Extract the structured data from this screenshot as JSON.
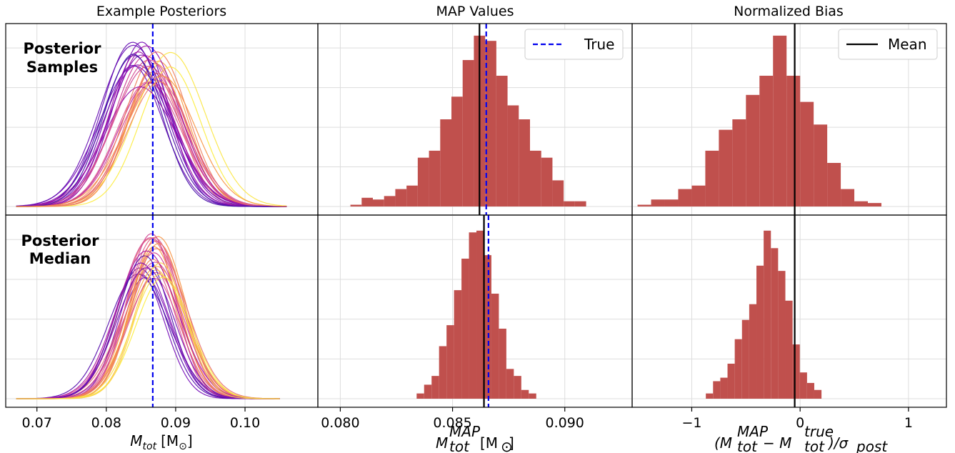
{
  "colors": {
    "bar": "#c0504d",
    "true_line": "#0000ee",
    "mean_line": "#000000",
    "posterior_cmap": [
      "#3a0ca3",
      "#7209b7",
      "#b5179e",
      "#e05d8a",
      "#f89540",
      "#f9d34a",
      "#fdf53a"
    ]
  },
  "chart_data": [
    {
      "id": "posteriors-samples",
      "type": "line",
      "title": "Example Posteriors",
      "row_label": [
        "Posterior",
        "Samples"
      ],
      "xlim": [
        0.0655,
        0.1105
      ],
      "xticks": [
        0.07,
        0.08,
        0.09,
        0.1
      ],
      "xtick_labels": [
        "0.07",
        "0.08",
        "0.09",
        "0.10"
      ],
      "true_value": 0.0867,
      "curves": {
        "count": 28,
        "mu_range": [
          0.0835,
          0.0895
        ],
        "sigma_range": [
          0.004,
          0.0052
        ],
        "x_range": [
          0.067,
          0.106
        ]
      }
    },
    {
      "id": "map-samples",
      "type": "bar",
      "title": "MAP Values",
      "xlim": [
        0.079,
        0.093
      ],
      "xticks": [
        0.08,
        0.085,
        0.09
      ],
      "xtick_labels": [
        "0.080",
        "0.085",
        "0.090"
      ],
      "ylim": [
        0,
        1.0
      ],
      "bins": {
        "start": 0.08045,
        "width": 0.0005,
        "counts": [
          0.01,
          0.05,
          0.04,
          0.06,
          0.1,
          0.12,
          0.28,
          0.32,
          0.5,
          0.63,
          0.84,
          0.98,
          0.95,
          0.75,
          0.58,
          0.5,
          0.32,
          0.28,
          0.15,
          0.03,
          0.03
        ]
      },
      "mean": 0.0862,
      "true_value": 0.0865,
      "legend": {
        "label": "True",
        "position": "top-right"
      }
    },
    {
      "id": "bias-samples",
      "type": "bar",
      "title": "Normalized Bias",
      "xlim": [
        -1.55,
        1.35
      ],
      "xticks": [
        -1,
        0,
        1
      ],
      "xtick_labels": [
        "−1",
        "0",
        "1"
      ],
      "ylim": [
        0,
        1.0
      ],
      "bins": {
        "start": -1.5,
        "width": 0.125,
        "counts": [
          0.01,
          0.04,
          0.04,
          0.1,
          0.12,
          0.32,
          0.44,
          0.5,
          0.64,
          0.75,
          0.98,
          0.75,
          0.6,
          0.47,
          0.25,
          0.1,
          0.03,
          0.02
        ]
      },
      "mean": -0.05,
      "legend": {
        "label": "Mean",
        "position": "top-right"
      }
    },
    {
      "id": "posteriors-median",
      "type": "line",
      "row_label": [
        "Posterior",
        "Median"
      ],
      "xlim": [
        0.0655,
        0.1105
      ],
      "xticks": [
        0.07,
        0.08,
        0.09,
        0.1
      ],
      "xtick_labels": [
        "0.07",
        "0.08",
        "0.09",
        "0.10"
      ],
      "xlabel_text": "M",
      "xlabel_sub": "tot",
      "xlabel_unit": "[M",
      "xlabel_unit_sub": "⊙",
      "xlabel_close": "]",
      "true_value": 0.0867,
      "curves": {
        "count": 28,
        "mu_range": [
          0.0848,
          0.0885
        ],
        "sigma_range": [
          0.0034,
          0.0045
        ],
        "x_range": [
          0.067,
          0.105
        ]
      }
    },
    {
      "id": "map-median",
      "type": "bar",
      "xlim": [
        0.079,
        0.093
      ],
      "xticks": [
        0.08,
        0.085,
        0.09
      ],
      "xtick_labels": [
        "0.080",
        "0.085",
        "0.090"
      ],
      "ylim": [
        0,
        1.0
      ],
      "bins": {
        "start": 0.0834,
        "width": 0.000333,
        "counts": [
          0.03,
          0.08,
          0.13,
          0.3,
          0.42,
          0.62,
          0.8,
          0.95,
          0.96,
          0.82,
          0.6,
          0.4,
          0.17,
          0.13,
          0.05,
          0.03
        ]
      },
      "mean": 0.0864,
      "true_value": 0.0866,
      "xlabel_text": "M",
      "xlabel_sub": "tot",
      "xlabel_sup": "MAP",
      "xlabel_unit": "[M",
      "xlabel_unit_sub": "⊙",
      "xlabel_close": "]"
    },
    {
      "id": "bias-median",
      "type": "bar",
      "xlim": [
        -1.55,
        1.35
      ],
      "xticks": [
        -1,
        0,
        1
      ],
      "xtick_labels": [
        "−1",
        "0",
        "1"
      ],
      "ylim": [
        0,
        1.0
      ],
      "bins": {
        "start": -0.87,
        "width": 0.0667,
        "counts": [
          0.03,
          0.1,
          0.12,
          0.2,
          0.34,
          0.45,
          0.54,
          0.76,
          0.96,
          0.86,
          0.73,
          0.56,
          0.31,
          0.15,
          0.09,
          0.05
        ]
      },
      "mean": -0.05,
      "xlabel_parts": {
        "open": "(M",
        "sub1": "tot",
        "sup1": "MAP",
        "minus": " − M",
        "sub2": "tot",
        "sup2": "true",
        "close": ")/σ",
        "sub3": "post"
      }
    }
  ]
}
